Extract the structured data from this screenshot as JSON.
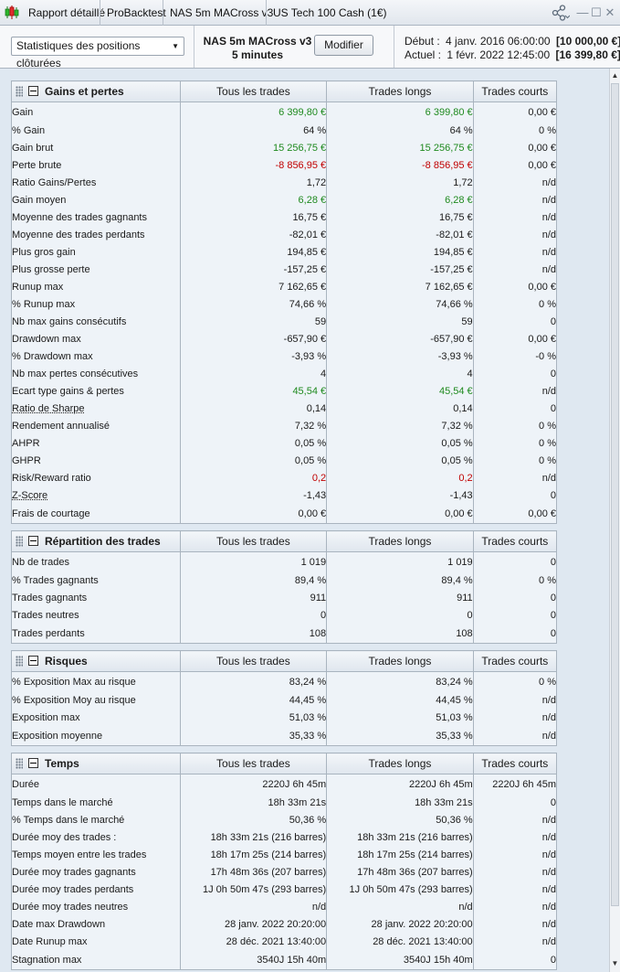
{
  "tabs": [
    "Rapport détaillé",
    "ProBacktest",
    "NAS 5m MACross v3",
    "US Tech 100 Cash (1€)"
  ],
  "header": {
    "dropdown_value": "Statistiques des positions clôturées",
    "strategy_name": "NAS 5m MACross v3",
    "timeframe": "5 minutes",
    "modify_button": "Modifier",
    "start_label": "Début :",
    "start_date": "4 janv. 2016 06:00:00",
    "start_capital": "[10 000,00 €]",
    "current_label": "Actuel :",
    "current_date": "1 févr. 2022 12:45:00",
    "current_capital": "[16 399,80 €]"
  },
  "columns": [
    "Tous les trades",
    "Trades longs",
    "Trades courts"
  ],
  "sections": [
    {
      "title": "Gains et pertes",
      "rows": [
        [
          "Gain",
          "6 399,80 €",
          "6 399,80 €",
          "0,00 €",
          "pos"
        ],
        [
          "% Gain",
          "64 %",
          "64 %",
          "0 %",
          ""
        ],
        [
          "Gain brut",
          "15 256,75 €",
          "15 256,75 €",
          "0,00 €",
          "pos"
        ],
        [
          "Perte brute",
          "-8 856,95 €",
          "-8 856,95 €",
          "0,00 €",
          "neg"
        ],
        [
          "Ratio Gains/Pertes",
          "1,72",
          "1,72",
          "n/d",
          ""
        ],
        [
          "Gain moyen",
          "6,28 €",
          "6,28 €",
          "n/d",
          "pos"
        ],
        [
          "Moyenne des trades gagnants",
          "16,75 €",
          "16,75 €",
          "n/d",
          ""
        ],
        [
          "Moyenne des trades perdants",
          "-82,01 €",
          "-82,01 €",
          "n/d",
          ""
        ],
        [
          "Plus gros gain",
          "194,85 €",
          "194,85 €",
          "n/d",
          ""
        ],
        [
          "Plus grosse perte",
          "-157,25 €",
          "-157,25 €",
          "n/d",
          ""
        ],
        [
          "Runup max",
          "7 162,65 €",
          "7 162,65 €",
          "0,00 €",
          ""
        ],
        [
          "% Runup max",
          "74,66 %",
          "74,66 %",
          "0 %",
          ""
        ],
        [
          "Nb max gains consécutifs",
          "59",
          "59",
          "0",
          ""
        ],
        [
          "Drawdown max",
          "-657,90 €",
          "-657,90 €",
          "0,00 €",
          ""
        ],
        [
          "% Drawdown max",
          "-3,93 %",
          "-3,93 %",
          "-0 %",
          ""
        ],
        [
          "Nb max pertes consécutives",
          "4",
          "4",
          "0",
          ""
        ],
        [
          "Ecart type gains & pertes",
          "45,54 €",
          "45,54 €",
          "n/d",
          "pos"
        ],
        [
          "Ratio de Sharpe",
          "0,14",
          "0,14",
          "0",
          "ul"
        ],
        [
          "Rendement annualisé",
          "7,32 %",
          "7,32 %",
          "0 %",
          ""
        ],
        [
          "AHPR",
          "0,05 %",
          "0,05 %",
          "0 %",
          ""
        ],
        [
          "GHPR",
          "0,05 %",
          "0,05 %",
          "0 %",
          ""
        ],
        [
          "Risk/Reward ratio",
          "0,2",
          "0,2",
          "n/d",
          "neg"
        ],
        [
          "Z-Score",
          "-1,43",
          "-1,43",
          "0",
          "ul"
        ],
        [
          "Frais de courtage",
          "0,00 €",
          "0,00 €",
          "0,00 €",
          ""
        ]
      ]
    },
    {
      "title": "Répartition des trades",
      "rows": [
        [
          "Nb de trades",
          "1 019",
          "1 019",
          "0",
          ""
        ],
        [
          "% Trades gagnants",
          "89,4 %",
          "89,4 %",
          "0 %",
          ""
        ],
        [
          "Trades gagnants",
          "911",
          "911",
          "0",
          ""
        ],
        [
          "Trades neutres",
          "0",
          "0",
          "0",
          ""
        ],
        [
          "Trades perdants",
          "108",
          "108",
          "0",
          ""
        ]
      ]
    },
    {
      "title": "Risques",
      "rows": [
        [
          "% Exposition Max au risque",
          "83,24 %",
          "83,24 %",
          "0 %",
          ""
        ],
        [
          "% Exposition Moy au risque",
          "44,45 %",
          "44,45 %",
          "n/d",
          ""
        ],
        [
          "Exposition max",
          "51,03 %",
          "51,03 %",
          "n/d",
          ""
        ],
        [
          "Exposition moyenne",
          "35,33 %",
          "35,33 %",
          "n/d",
          ""
        ]
      ]
    },
    {
      "title": "Temps",
      "rows": [
        [
          "Durée",
          "2220J 6h 45m",
          "2220J 6h 45m",
          "2220J 6h 45m",
          ""
        ],
        [
          "Temps dans le marché",
          "18h 33m 21s",
          "18h 33m 21s",
          "0",
          ""
        ],
        [
          "% Temps dans le marché",
          "50,36 %",
          "50,36 %",
          "n/d",
          ""
        ],
        [
          "Durée moy des trades :",
          "18h 33m 21s (216 barres)",
          "18h 33m 21s (216 barres)",
          "n/d",
          ""
        ],
        [
          "Temps moyen entre les trades",
          "18h 17m 25s (214 barres)",
          "18h 17m 25s (214 barres)",
          "n/d",
          ""
        ],
        [
          "Durée moy trades gagnants",
          "17h 48m 36s (207 barres)",
          "17h 48m 36s (207 barres)",
          "n/d",
          ""
        ],
        [
          "Durée moy trades perdants",
          "1J 0h 50m 47s (293 barres)",
          "1J 0h 50m 47s (293 barres)",
          "n/d",
          ""
        ],
        [
          "Durée moy trades neutres",
          "n/d",
          "n/d",
          "n/d",
          ""
        ],
        [
          "Date max Drawdown",
          "28 janv. 2022 20:20:00",
          "28 janv. 2022 20:20:00",
          "n/d",
          ""
        ],
        [
          "Date Runup max",
          "28 déc. 2021 13:40:00",
          "28 déc. 2021 13:40:00",
          "n/d",
          ""
        ],
        [
          "Stagnation max",
          "3540J 15h 40m",
          "3540J 15h 40m",
          "0",
          ""
        ]
      ]
    }
  ]
}
